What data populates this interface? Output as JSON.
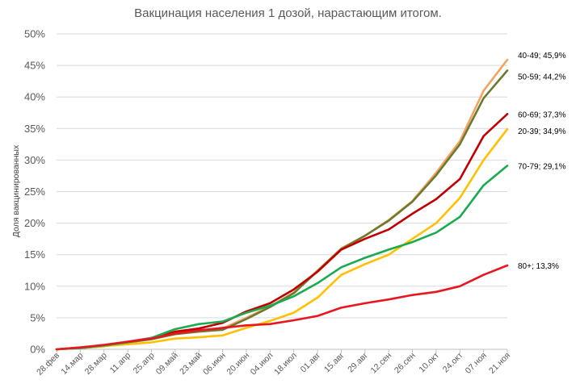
{
  "chart_data": {
    "type": "line",
    "title": "Вакцинация населения 1 дозой, нарастающим итогом.",
    "ylabel": "Доля вакцинированных",
    "xlabel": "",
    "ylim": [
      0,
      50
    ],
    "yticks": [
      "0%",
      "5%",
      "10%",
      "15%",
      "20%",
      "25%",
      "30%",
      "35%",
      "40%",
      "45%",
      "50%"
    ],
    "grid": true,
    "legend": "inline-right",
    "x": [
      "28.фев",
      "14.мар",
      "28.мар",
      "11.апр",
      "25.апр",
      "09.май",
      "23.май",
      "06.июн",
      "20.июн",
      "04.июл",
      "18.июл",
      "01.авг",
      "15.авг",
      "29.авг",
      "12.сен",
      "26.сен",
      "10.окт",
      "24.окт",
      "07.ноя",
      "21.ноя"
    ],
    "series": [
      {
        "name": "40-49",
        "end_label": "40-49; 45,9%",
        "color": "#f4a460",
        "values": [
          0,
          0.3,
          0.6,
          1.1,
          1.6,
          2.6,
          3.0,
          3.3,
          5.0,
          6.8,
          9.0,
          12.5,
          16.0,
          18.0,
          20.5,
          23.5,
          28.0,
          33.0,
          41.0,
          45.9
        ]
      },
      {
        "name": "50-59",
        "end_label": "50-59; 44,2%",
        "color": "#6b7a2f",
        "values": [
          0,
          0.3,
          0.6,
          1.1,
          1.6,
          2.4,
          2.8,
          3.1,
          4.8,
          6.7,
          8.9,
          12.4,
          15.9,
          18.0,
          20.4,
          23.4,
          27.6,
          32.5,
          39.8,
          44.2
        ]
      },
      {
        "name": "60-69",
        "end_label": "60-69; 37,3%",
        "color": "#c00000",
        "values": [
          0,
          0.2,
          0.5,
          1.2,
          1.8,
          2.8,
          3.3,
          4.2,
          6.0,
          7.3,
          9.5,
          12.3,
          15.8,
          17.5,
          19.0,
          21.5,
          23.8,
          27.0,
          33.8,
          37.3
        ]
      },
      {
        "name": "20-39",
        "end_label": "20-39; 34,9%",
        "color": "#ffc000",
        "values": [
          0,
          0.2,
          0.5,
          0.8,
          1.1,
          1.7,
          1.9,
          2.2,
          3.4,
          4.5,
          5.8,
          8.2,
          11.8,
          13.5,
          15.0,
          17.5,
          20.0,
          24.0,
          30.0,
          34.9
        ]
      },
      {
        "name": "70-79",
        "end_label": "70-79; 29,1%",
        "color": "#1aaa50",
        "values": [
          0,
          0.2,
          0.6,
          1.1,
          1.8,
          3.2,
          4.0,
          4.4,
          5.8,
          6.9,
          8.4,
          10.5,
          13.0,
          14.5,
          15.8,
          17.0,
          18.5,
          21.0,
          26.0,
          29.1
        ]
      },
      {
        "name": "80+",
        "end_label": "80+; 13,3%",
        "color": "#e8171f",
        "values": [
          0,
          0.3,
          0.7,
          1.2,
          1.7,
          2.5,
          3.0,
          3.4,
          3.8,
          4.0,
          4.6,
          5.3,
          6.6,
          7.3,
          7.9,
          8.6,
          9.1,
          10.0,
          11.8,
          13.3
        ]
      }
    ]
  }
}
